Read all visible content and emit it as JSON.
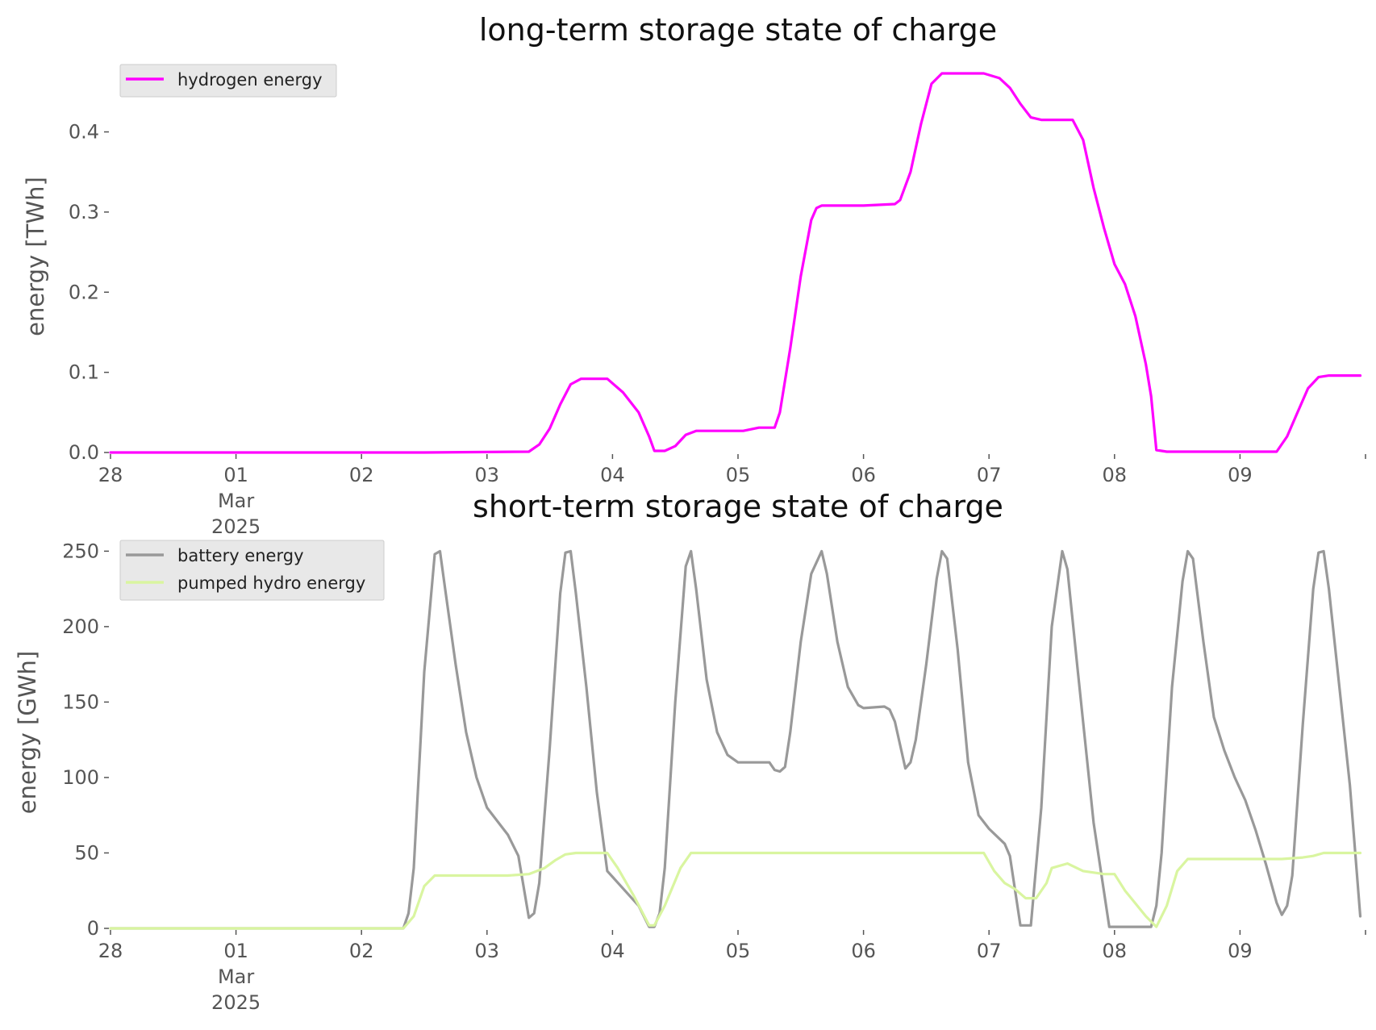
{
  "chart_data": [
    {
      "type": "line",
      "title": "long-term storage state of charge",
      "ylabel": "energy [TWh]",
      "xlabel": "",
      "ylim": [
        0,
        0.475
      ],
      "xlim": [
        "2025-02-28",
        "2025-03-10"
      ],
      "yticks": [
        0.0,
        0.1,
        0.2,
        0.3,
        0.4
      ],
      "ytick_labels": [
        "0.0",
        "0.1",
        "0.2",
        "0.3",
        "0.4"
      ],
      "xticks": [
        "2025-02-28",
        "2025-03-01",
        "2025-03-02",
        "2025-03-03",
        "2025-03-04",
        "2025-03-05",
        "2025-03-06",
        "2025-03-07",
        "2025-03-08",
        "2025-03-09"
      ],
      "xtick_labels": [
        "28",
        "01",
        "02",
        "03",
        "04",
        "05",
        "06",
        "07",
        "08",
        "09"
      ],
      "xtick_sub_labels": [
        "Mar",
        "2025"
      ],
      "grid": false,
      "legend_position": "top-left",
      "series": [
        {
          "name": "hydrogen energy",
          "color": "#ff00ff",
          "points": [
            [
              "2025-02-28T00:00",
              0.0
            ],
            [
              "2025-03-02T12:00",
              0.0
            ],
            [
              "2025-03-03T08:00",
              0.001
            ],
            [
              "2025-03-03T10:00",
              0.01
            ],
            [
              "2025-03-03T12:00",
              0.03
            ],
            [
              "2025-03-03T14:00",
              0.06
            ],
            [
              "2025-03-03T16:00",
              0.085
            ],
            [
              "2025-03-03T18:00",
              0.092
            ],
            [
              "2025-03-03T23:00",
              0.092
            ],
            [
              "2025-03-04T02:00",
              0.075
            ],
            [
              "2025-03-04T05:00",
              0.05
            ],
            [
              "2025-03-04T07:00",
              0.02
            ],
            [
              "2025-03-04T08:00",
              0.002
            ],
            [
              "2025-03-04T10:00",
              0.002
            ],
            [
              "2025-03-04T12:00",
              0.008
            ],
            [
              "2025-03-04T14:00",
              0.022
            ],
            [
              "2025-03-04T16:00",
              0.027
            ],
            [
              "2025-03-05T01:00",
              0.027
            ],
            [
              "2025-03-05T04:00",
              0.031
            ],
            [
              "2025-03-05T06:00",
              0.031
            ],
            [
              "2025-03-05T07:00",
              0.031
            ],
            [
              "2025-03-05T08:00",
              0.05
            ],
            [
              "2025-03-05T10:00",
              0.13
            ],
            [
              "2025-03-05T12:00",
              0.22
            ],
            [
              "2025-03-05T14:00",
              0.29
            ],
            [
              "2025-03-05T15:00",
              0.305
            ],
            [
              "2025-03-05T16:00",
              0.308
            ],
            [
              "2025-03-06T00:00",
              0.308
            ],
            [
              "2025-03-06T06:00",
              0.31
            ],
            [
              "2025-03-06T07:00",
              0.315
            ],
            [
              "2025-03-06T09:00",
              0.35
            ],
            [
              "2025-03-06T11:00",
              0.41
            ],
            [
              "2025-03-06T13:00",
              0.46
            ],
            [
              "2025-03-06T15:00",
              0.473
            ],
            [
              "2025-03-06T23:00",
              0.473
            ],
            [
              "2025-03-07T02:00",
              0.467
            ],
            [
              "2025-03-07T04:00",
              0.455
            ],
            [
              "2025-03-07T06:00",
              0.435
            ],
            [
              "2025-03-07T08:00",
              0.418
            ],
            [
              "2025-03-07T10:00",
              0.415
            ],
            [
              "2025-03-07T16:00",
              0.415
            ],
            [
              "2025-03-07T18:00",
              0.39
            ],
            [
              "2025-03-07T20:00",
              0.33
            ],
            [
              "2025-03-07T22:00",
              0.28
            ],
            [
              "2025-03-08T00:00",
              0.235
            ],
            [
              "2025-03-08T02:00",
              0.21
            ],
            [
              "2025-03-08T04:00",
              0.17
            ],
            [
              "2025-03-08T06:00",
              0.11
            ],
            [
              "2025-03-08T07:00",
              0.07
            ],
            [
              "2025-03-08T08:00",
              0.003
            ],
            [
              "2025-03-08T10:00",
              0.001
            ],
            [
              "2025-03-09T07:00",
              0.001
            ],
            [
              "2025-03-09T09:00",
              0.02
            ],
            [
              "2025-03-09T11:00",
              0.05
            ],
            [
              "2025-03-09T13:00",
              0.08
            ],
            [
              "2025-03-09T15:00",
              0.094
            ],
            [
              "2025-03-09T17:00",
              0.096
            ],
            [
              "2025-03-09T23:00",
              0.096
            ]
          ]
        }
      ]
    },
    {
      "type": "line",
      "title": "short-term storage state of charge",
      "ylabel": "energy [GWh]",
      "xlabel": "",
      "ylim": [
        0,
        255
      ],
      "xlim": [
        "2025-02-28",
        "2025-03-10"
      ],
      "yticks": [
        0,
        50,
        100,
        150,
        200,
        250
      ],
      "ytick_labels": [
        "0",
        "50",
        "100",
        "150",
        "200",
        "250"
      ],
      "xticks": [
        "2025-02-28",
        "2025-03-01",
        "2025-03-02",
        "2025-03-03",
        "2025-03-04",
        "2025-03-05",
        "2025-03-06",
        "2025-03-07",
        "2025-03-08",
        "2025-03-09"
      ],
      "xtick_labels": [
        "28",
        "01",
        "02",
        "03",
        "04",
        "05",
        "06",
        "07",
        "08",
        "09"
      ],
      "xtick_sub_labels": [
        "Mar",
        "2025"
      ],
      "grid": false,
      "legend_position": "top-left",
      "series": [
        {
          "name": "battery energy",
          "color": "#999999",
          "points": [
            [
              "2025-02-28T00:00",
              0
            ],
            [
              "2025-03-02T08:00",
              0
            ],
            [
              "2025-03-02T09:00",
              10
            ],
            [
              "2025-03-02T10:00",
              40
            ],
            [
              "2025-03-02T12:00",
              170
            ],
            [
              "2025-03-02T14:00",
              248
            ],
            [
              "2025-03-02T15:00",
              250
            ],
            [
              "2025-03-02T16:00",
              225
            ],
            [
              "2025-03-02T18:00",
              175
            ],
            [
              "2025-03-02T20:00",
              130
            ],
            [
              "2025-03-02T22:00",
              100
            ],
            [
              "2025-03-03T00:00",
              80
            ],
            [
              "2025-03-03T04:00",
              62
            ],
            [
              "2025-03-03T06:00",
              48
            ],
            [
              "2025-03-03T08:00",
              7
            ],
            [
              "2025-03-03T09:00",
              10
            ],
            [
              "2025-03-03T10:00",
              30
            ],
            [
              "2025-03-03T12:00",
              120
            ],
            [
              "2025-03-03T14:00",
              222
            ],
            [
              "2025-03-03T15:00",
              249
            ],
            [
              "2025-03-03T16:00",
              250
            ],
            [
              "2025-03-03T17:00",
              222
            ],
            [
              "2025-03-03T19:00",
              160
            ],
            [
              "2025-03-03T21:00",
              90
            ],
            [
              "2025-03-03T23:00",
              38
            ],
            [
              "2025-03-04T05:00",
              15
            ],
            [
              "2025-03-04T07:00",
              1
            ],
            [
              "2025-03-04T08:00",
              1
            ],
            [
              "2025-03-04T09:00",
              10
            ],
            [
              "2025-03-04T10:00",
              40
            ],
            [
              "2025-03-04T12:00",
              150
            ],
            [
              "2025-03-04T14:00",
              240
            ],
            [
              "2025-03-04T15:00",
              250
            ],
            [
              "2025-03-04T16:00",
              225
            ],
            [
              "2025-03-04T18:00",
              165
            ],
            [
              "2025-03-04T20:00",
              130
            ],
            [
              "2025-03-04T22:00",
              115
            ],
            [
              "2025-03-05T00:00",
              110
            ],
            [
              "2025-03-05T06:00",
              110
            ],
            [
              "2025-03-05T07:00",
              105
            ],
            [
              "2025-03-05T08:00",
              104
            ],
            [
              "2025-03-05T09:00",
              107
            ],
            [
              "2025-03-05T10:00",
              130
            ],
            [
              "2025-03-05T12:00",
              190
            ],
            [
              "2025-03-05T14:00",
              235
            ],
            [
              "2025-03-05T16:00",
              250
            ],
            [
              "2025-03-05T17:00",
              235
            ],
            [
              "2025-03-05T19:00",
              190
            ],
            [
              "2025-03-05T21:00",
              160
            ],
            [
              "2025-03-05T23:00",
              148
            ],
            [
              "2025-03-06T00:00",
              146
            ],
            [
              "2025-03-06T04:00",
              147
            ],
            [
              "2025-03-06T05:00",
              145
            ],
            [
              "2025-03-06T06:00",
              137
            ],
            [
              "2025-03-06T08:00",
              106
            ],
            [
              "2025-03-06T09:00",
              110
            ],
            [
              "2025-03-06T10:00",
              125
            ],
            [
              "2025-03-06T12:00",
              175
            ],
            [
              "2025-03-06T14:00",
              232
            ],
            [
              "2025-03-06T15:00",
              250
            ],
            [
              "2025-03-06T16:00",
              245
            ],
            [
              "2025-03-06T18:00",
              185
            ],
            [
              "2025-03-06T20:00",
              110
            ],
            [
              "2025-03-06T22:00",
              75
            ],
            [
              "2025-03-07T00:00",
              66
            ],
            [
              "2025-03-07T03:00",
              56
            ],
            [
              "2025-03-07T04:00",
              48
            ],
            [
              "2025-03-07T06:00",
              2
            ],
            [
              "2025-03-07T08:00",
              2
            ],
            [
              "2025-03-07T10:00",
              80
            ],
            [
              "2025-03-07T12:00",
              200
            ],
            [
              "2025-03-07T14:00",
              250
            ],
            [
              "2025-03-07T15:00",
              238
            ],
            [
              "2025-03-07T17:00",
              170
            ],
            [
              "2025-03-07T20:00",
              70
            ],
            [
              "2025-03-07T23:00",
              1
            ],
            [
              "2025-03-08T07:00",
              1
            ],
            [
              "2025-03-08T08:00",
              15
            ],
            [
              "2025-03-08T09:00",
              50
            ],
            [
              "2025-03-08T11:00",
              160
            ],
            [
              "2025-03-08T13:00",
              230
            ],
            [
              "2025-03-08T14:00",
              250
            ],
            [
              "2025-03-08T15:00",
              245
            ],
            [
              "2025-03-08T17:00",
              190
            ],
            [
              "2025-03-08T19:00",
              140
            ],
            [
              "2025-03-08T21:00",
              118
            ],
            [
              "2025-03-08T23:00",
              100
            ],
            [
              "2025-03-09T01:00",
              85
            ],
            [
              "2025-03-09T03:00",
              65
            ],
            [
              "2025-03-09T05:00",
              42
            ],
            [
              "2025-03-09T07:00",
              17
            ],
            [
              "2025-03-09T08:00",
              9
            ],
            [
              "2025-03-09T09:00",
              15
            ],
            [
              "2025-03-09T10:00",
              35
            ],
            [
              "2025-03-09T12:00",
              135
            ],
            [
              "2025-03-09T14:00",
              225
            ],
            [
              "2025-03-09T15:00",
              249
            ],
            [
              "2025-03-09T16:00",
              250
            ],
            [
              "2025-03-09T17:00",
              225
            ],
            [
              "2025-03-09T19:00",
              160
            ],
            [
              "2025-03-09T21:00",
              95
            ],
            [
              "2025-03-09T23:00",
              8
            ]
          ]
        },
        {
          "name": "pumped hydro energy",
          "color": "#d9f5a0",
          "points": [
            [
              "2025-02-28T00:00",
              0
            ],
            [
              "2025-03-02T08:00",
              0
            ],
            [
              "2025-03-02T10:00",
              8
            ],
            [
              "2025-03-02T12:00",
              28
            ],
            [
              "2025-03-02T14:00",
              35
            ],
            [
              "2025-03-02T16:00",
              35
            ],
            [
              "2025-03-03T04:00",
              35
            ],
            [
              "2025-03-03T08:00",
              36
            ],
            [
              "2025-03-03T11:00",
              40
            ],
            [
              "2025-03-03T13:00",
              45
            ],
            [
              "2025-03-03T15:00",
              49
            ],
            [
              "2025-03-03T17:00",
              50
            ],
            [
              "2025-03-03T23:00",
              50
            ],
            [
              "2025-03-04T01:00",
              40
            ],
            [
              "2025-03-04T04:00",
              22
            ],
            [
              "2025-03-04T07:00",
              2
            ],
            [
              "2025-03-04T08:00",
              2
            ],
            [
              "2025-03-04T10:00",
              15
            ],
            [
              "2025-03-04T13:00",
              40
            ],
            [
              "2025-03-04T15:00",
              50
            ],
            [
              "2025-03-06T23:00",
              50
            ],
            [
              "2025-03-07T01:00",
              38
            ],
            [
              "2025-03-07T03:00",
              30
            ],
            [
              "2025-03-07T05:00",
              26
            ],
            [
              "2025-03-07T07:00",
              20
            ],
            [
              "2025-03-07T09:00",
              20
            ],
            [
              "2025-03-07T11:00",
              30
            ],
            [
              "2025-03-07T12:00",
              40
            ],
            [
              "2025-03-07T15:00",
              43
            ],
            [
              "2025-03-07T18:00",
              38
            ],
            [
              "2025-03-07T22:00",
              36
            ],
            [
              "2025-03-08T00:00",
              36
            ],
            [
              "2025-03-08T02:00",
              25
            ],
            [
              "2025-03-08T06:00",
              8
            ],
            [
              "2025-03-08T08:00",
              1
            ],
            [
              "2025-03-08T10:00",
              15
            ],
            [
              "2025-03-08T12:00",
              38
            ],
            [
              "2025-03-08T14:00",
              46
            ],
            [
              "2025-03-09T08:00",
              46
            ],
            [
              "2025-03-09T12:00",
              47
            ],
            [
              "2025-03-09T14:00",
              48
            ],
            [
              "2025-03-09T16:00",
              50
            ],
            [
              "2025-03-09T23:00",
              50
            ]
          ]
        }
      ]
    }
  ]
}
